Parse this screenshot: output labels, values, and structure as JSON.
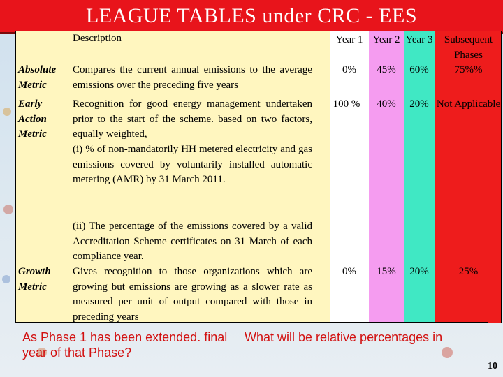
{
  "title": "LEAGUE TABLES under CRC - EES",
  "header": {
    "description": "Description",
    "year1": "Year 1",
    "year2": "Year 2",
    "year3": "Year 3",
    "subsequent": "Subsequent Phases"
  },
  "rows": [
    {
      "label": "Absolute Metric",
      "description": "Compares the current annual emissions to the average emissions over the preceding five years",
      "year1": "0%",
      "year2": "45%",
      "year3": "60%",
      "subsequent": "75%%"
    },
    {
      "label": "Early Action Metric",
      "description": "Recognition for good energy management undertaken prior to the start of the scheme. based on two factors, equally weighted,",
      "description_2": "(i) % of non-mandatorily HH metered electricity and gas emissions covered by voluntarily installed automatic metering (AMR) by 31 March 2011.",
      "description_3": "(ii) The percentage of the emissions covered by a valid Accreditation Scheme certificates on 31 March of each compliance year.",
      "year1": "100 %",
      "year2": "40%",
      "year3": "20%",
      "subsequent": "Not Applicable"
    },
    {
      "label": "Growth Metric",
      "description": "Gives recognition to those organizations which are growing but emissions are growing as a slower rate as measured per unit of output compared with those in preceding years",
      "year1": "0%",
      "year2": "15%",
      "year3": "20%",
      "subsequent": "25%"
    }
  ],
  "question_left": "As Phase 1 has been extended. final year of that Phase?",
  "question_right": "What will be relative percentages in",
  "page_number": "10"
}
